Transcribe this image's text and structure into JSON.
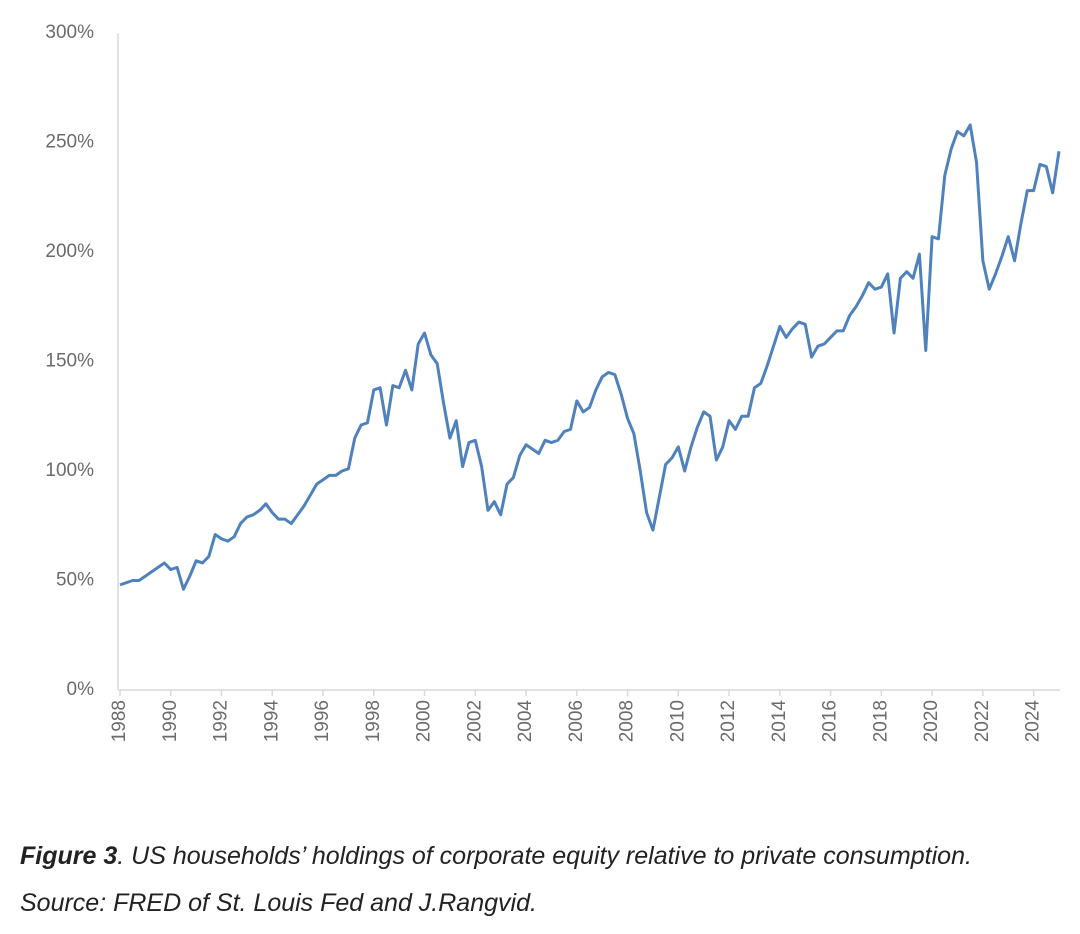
{
  "chart_data": {
    "type": "line",
    "x": [
      1988,
      1988.25,
      1988.5,
      1988.75,
      1989,
      1989.25,
      1989.5,
      1989.75,
      1990,
      1990.25,
      1990.5,
      1990.75,
      1991,
      1991.25,
      1991.5,
      1991.75,
      1992,
      1992.25,
      1992.5,
      1992.75,
      1993,
      1993.25,
      1993.5,
      1993.75,
      1994,
      1994.25,
      1994.5,
      1994.75,
      1995,
      1995.25,
      1995.5,
      1995.75,
      1996,
      1996.25,
      1996.5,
      1996.75,
      1997,
      1997.25,
      1997.5,
      1997.75,
      1998,
      1998.25,
      1998.5,
      1998.75,
      1999,
      1999.25,
      1999.5,
      1999.75,
      2000,
      2000.25,
      2000.5,
      2000.75,
      2001,
      2001.25,
      2001.5,
      2001.75,
      2002,
      2002.25,
      2002.5,
      2002.75,
      2003,
      2003.25,
      2003.5,
      2003.75,
      2004,
      2004.25,
      2004.5,
      2004.75,
      2005,
      2005.25,
      2005.5,
      2005.75,
      2006,
      2006.25,
      2006.5,
      2006.75,
      2007,
      2007.25,
      2007.5,
      2007.75,
      2008,
      2008.25,
      2008.5,
      2008.75,
      2009,
      2009.25,
      2009.5,
      2009.75,
      2010,
      2010.25,
      2010.5,
      2010.75,
      2011,
      2011.25,
      2011.5,
      2011.75,
      2012,
      2012.25,
      2012.5,
      2012.75,
      2013,
      2013.25,
      2013.5,
      2013.75,
      2014,
      2014.25,
      2014.5,
      2014.75,
      2015,
      2015.25,
      2015.5,
      2015.75,
      2016,
      2016.25,
      2016.5,
      2016.75,
      2017,
      2017.25,
      2017.5,
      2017.75,
      2018,
      2018.25,
      2018.5,
      2018.75,
      2019,
      2019.25,
      2019.5,
      2019.75,
      2020,
      2020.25,
      2020.5,
      2020.75,
      2021,
      2021.25,
      2021.5,
      2021.75,
      2022,
      2022.25,
      2022.5,
      2022.75,
      2023,
      2023.25,
      2023.5,
      2023.75,
      2024,
      2024.25,
      2024.5,
      2024.75,
      2025
    ],
    "values": [
      48,
      49,
      50,
      50,
      52,
      54,
      56,
      58,
      55,
      56,
      46,
      52,
      59,
      58,
      61,
      71,
      69,
      68,
      70,
      76,
      79,
      80,
      82,
      85,
      81,
      78,
      78,
      76,
      80,
      84,
      89,
      94,
      96,
      98,
      98,
      100,
      101,
      115,
      121,
      122,
      137,
      138,
      121,
      139,
      138,
      146,
      137,
      158,
      163,
      153,
      149,
      131,
      115,
      123,
      102,
      113,
      114,
      102,
      82,
      86,
      80,
      94,
      97,
      107,
      112,
      110,
      108,
      114,
      113,
      114,
      118,
      119,
      132,
      127,
      129,
      137,
      143,
      145,
      144,
      135,
      124,
      117,
      100,
      81,
      73,
      88,
      103,
      106,
      111,
      100,
      111,
      120,
      127,
      125,
      105,
      111,
      123,
      119,
      125,
      125,
      138,
      140,
      148,
      157,
      166,
      161,
      165,
      168,
      167,
      152,
      157,
      158,
      161,
      164,
      164,
      171,
      175,
      180,
      186,
      183,
      184,
      190,
      163,
      188,
      191,
      188,
      199,
      155,
      207,
      206,
      235,
      247,
      255,
      253,
      258,
      241,
      196,
      183,
      190,
      198,
      207,
      196,
      213,
      228,
      228,
      240,
      239,
      227,
      246
    ],
    "color": "#4f81bd",
    "xlim": [
      1988,
      2025
    ],
    "xticks": [
      1988,
      1990,
      1992,
      1994,
      1996,
      1998,
      2000,
      2002,
      2004,
      2006,
      2008,
      2010,
      2012,
      2014,
      2016,
      2018,
      2020,
      2022,
      2024
    ],
    "ylim": [
      0,
      300
    ],
    "yticks": [
      {
        "value": 0,
        "label": "0%"
      },
      {
        "value": 50,
        "label": "50%"
      },
      {
        "value": 100,
        "label": "100%"
      },
      {
        "value": 150,
        "label": "150%"
      },
      {
        "value": 200,
        "label": "200%"
      },
      {
        "value": 250,
        "label": "250%"
      },
      {
        "value": 300,
        "label": "300%"
      }
    ],
    "grid": false
  },
  "caption": {
    "label": "Figure 3",
    "text": ". US households’ holdings of corporate equity relative to private consumption.",
    "source": "Source: FRED of St. Louis Fed and J.Rangvid."
  }
}
